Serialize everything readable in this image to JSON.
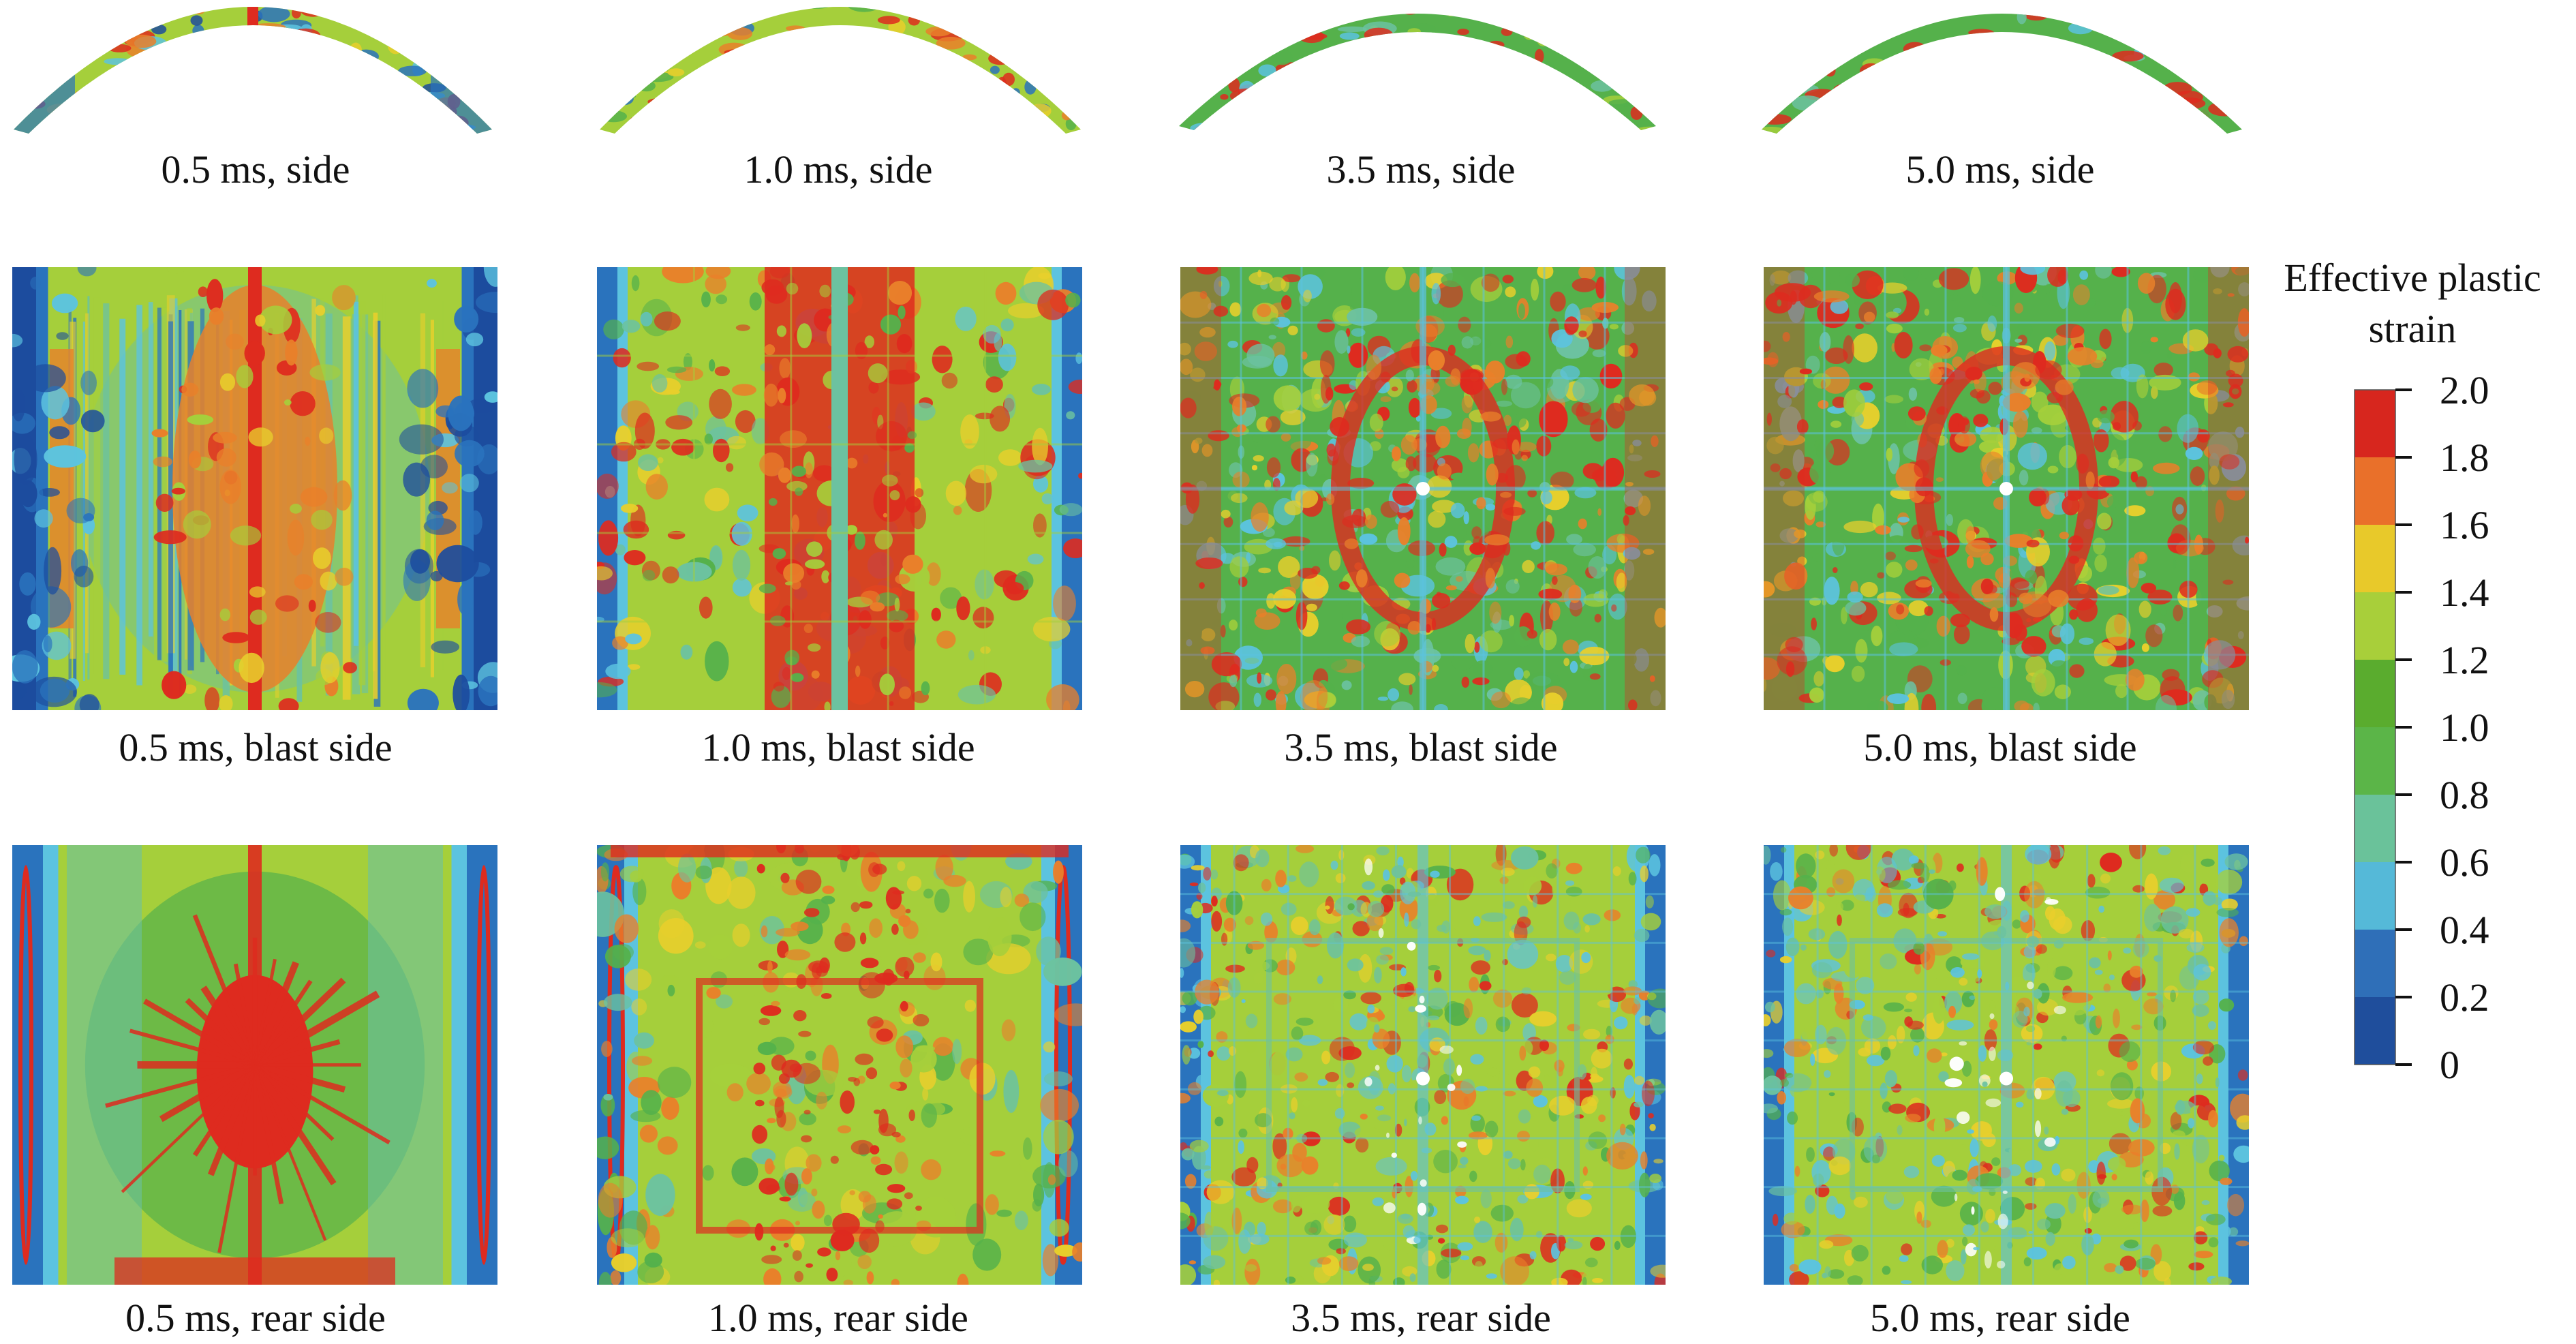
{
  "figure": {
    "rows": [
      {
        "view": "side",
        "panels": [
          "0.5 ms, side",
          "1.0 ms, side",
          "3.5 ms, side",
          "5.0 ms, side"
        ]
      },
      {
        "view": "blast",
        "panels": [
          "0.5 ms, blast side",
          "1.0 ms, blast side",
          "3.5 ms, blast side",
          "5.0 ms, blast side"
        ]
      },
      {
        "view": "rear",
        "panels": [
          "0.5 ms, rear side",
          "1.0 ms, rear side",
          "3.5 ms, rear side",
          "5.0 ms, rear side"
        ]
      }
    ],
    "legend": {
      "title_line1": "Effective plastic",
      "title_line2": "strain",
      "ticks": [
        "2.0",
        "1.8",
        "1.6",
        "1.4",
        "1.2",
        "1.0",
        "0.8",
        "0.6",
        "0.4",
        "0.2",
        "0"
      ],
      "colors": [
        "#d7261e",
        "#e9702a",
        "#e8c92a",
        "#a8cf3a",
        "#5aac2e",
        "#5bb548",
        "#6ac29a",
        "#55b9d8",
        "#2f6fb8",
        "#1f4e9c"
      ]
    },
    "palette": {
      "red": "#de2b1f",
      "orange": "#e9802a",
      "yellow": "#e8cf2c",
      "lime": "#a5cf3b",
      "green": "#55b14b",
      "teal": "#6cc2a0",
      "cyan": "#5cc3df",
      "blue": "#2a73bd",
      "navy": "#1c4c9e"
    }
  }
}
